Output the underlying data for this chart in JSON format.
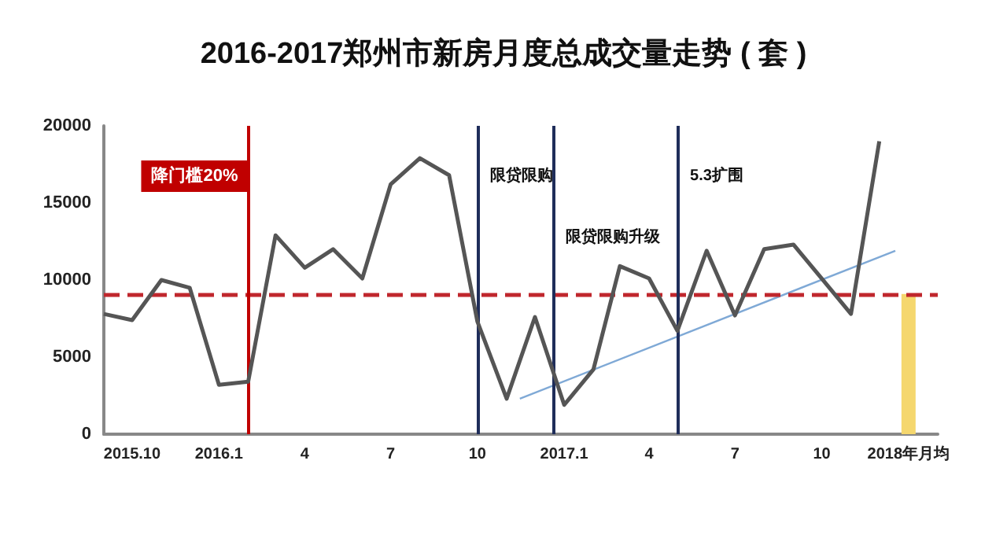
{
  "chart_data": {
    "type": "line",
    "title": "2016-2017郑州市新房月度总成交量走势 ( 套 )",
    "xlim": [
      "2015-09",
      "2018-02"
    ],
    "xticks": [
      {
        "value": "2015-10",
        "label": "2015.10"
      },
      {
        "value": "2016-01",
        "label": "2016.1"
      },
      {
        "value": "2016-04",
        "label": "4"
      },
      {
        "value": "2016-07",
        "label": "7"
      },
      {
        "value": "2016-10",
        "label": "10"
      },
      {
        "value": "2017-01",
        "label": "2017.1"
      },
      {
        "value": "2017-04",
        "label": "4"
      },
      {
        "value": "2017-07",
        "label": "7"
      },
      {
        "value": "2017-10",
        "label": "10"
      },
      {
        "value": "2018-01",
        "label": "2018年月均"
      }
    ],
    "ylim": [
      0,
      20000
    ],
    "yticks": [
      0,
      5000,
      10000,
      15000,
      20000
    ],
    "grid": false,
    "marker": "none",
    "line_style": "solid",
    "series": [
      {
        "color": "#555555",
        "x": [
          "2015-09",
          "2015-10",
          "2015-11",
          "2015-12",
          "2016-01",
          "2016-02",
          "2016-03",
          "2016-04",
          "2016-05",
          "2016-06",
          "2016-07",
          "2016-08",
          "2016-09",
          "2016-10",
          "2016-11",
          "2016-12",
          "2017-01",
          "2017-02",
          "2017-03",
          "2017-04",
          "2017-05",
          "2017-06",
          "2017-07",
          "2017-08",
          "2017-09",
          "2017-10",
          "2017-11",
          "2017-12"
        ],
        "values": [
          7800,
          7400,
          10000,
          9500,
          3200,
          3400,
          12900,
          10800,
          12000,
          10100,
          16200,
          17900,
          16800,
          7300,
          2300,
          7600,
          1900,
          4200,
          10900,
          10100,
          6700,
          11900,
          7700,
          12000,
          12300,
          10100,
          7800,
          19000
        ]
      },
      {
        "color": "#7fa9d6",
        "x": [
          "2016-11-15",
          "2017-12-18"
        ],
        "values": [
          2300,
          11900
        ]
      },
      {
        "type": "bar",
        "color": "#f5d76e",
        "x": [
          "2018-01"
        ],
        "values": [
          9100
        ]
      }
    ],
    "ref_lines": [
      {
        "axis": "y",
        "value": 9100,
        "color": "#c0272d",
        "line_style": "dashed"
      },
      {
        "axis": "x",
        "value": "2016-02",
        "label": "降门槛20%",
        "color": "#c00000",
        "line_style": "solid"
      },
      {
        "axis": "x",
        "value": "2016-10",
        "label": "限贷限购",
        "color": "#1f2d5a",
        "line_style": "solid"
      },
      {
        "axis": "x",
        "value": "2016-12-20",
        "label": "限贷限购升级",
        "color": "#1f2d5a",
        "line_style": "solid"
      },
      {
        "axis": "x",
        "value": "2017-05",
        "label": "5.3扩围",
        "color": "#1f2d5a",
        "line_style": "solid"
      }
    ]
  }
}
